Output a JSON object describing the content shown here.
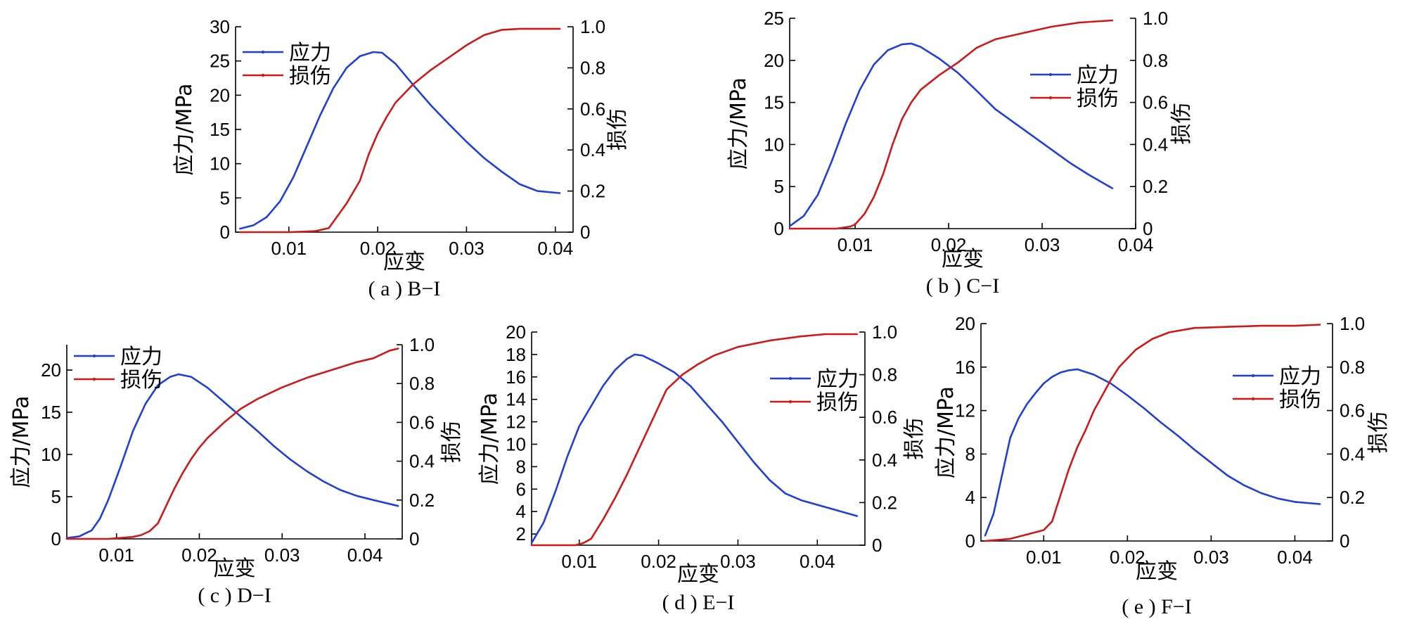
{
  "figure": {
    "stress_color": "#1f3fd8",
    "damage_color": "#d01818"
  },
  "chart_data": [
    {
      "type": "line",
      "caption": "( a ) B−I",
      "xlabel": "应变",
      "ylabel": "应力/MPa",
      "y2label": "损伤",
      "xlim": [
        0.004,
        0.042
      ],
      "ylim": [
        0,
        30
      ],
      "y2lim": [
        0,
        1.0
      ],
      "xticks": [
        0.01,
        0.02,
        0.03,
        0.04
      ],
      "xtick_labels": [
        "0.01",
        "0.02",
        "0.03",
        "0.04"
      ],
      "yticks": [
        0,
        5,
        10,
        15,
        20,
        25,
        30
      ],
      "ytick_labels": [
        "0",
        "5",
        "10",
        "15",
        "20",
        "25",
        "30"
      ],
      "y2ticks": [
        0,
        0.2,
        0.4,
        0.6,
        0.8,
        1.0
      ],
      "y2tick_labels": [
        "0",
        "0.2",
        "0.4",
        "0.6",
        "0.8",
        "1.0"
      ],
      "legend_position": "top-left",
      "series": [
        {
          "name": "应力",
          "axis": "left",
          "color_key": "stress",
          "x": [
            0.0045,
            0.006,
            0.0075,
            0.009,
            0.0105,
            0.012,
            0.0135,
            0.015,
            0.0165,
            0.018,
            0.0195,
            0.0205,
            0.022,
            0.024,
            0.026,
            0.028,
            0.03,
            0.032,
            0.034,
            0.036,
            0.038,
            0.0405
          ],
          "y": [
            0.5,
            1.0,
            2.2,
            4.5,
            8.0,
            12.5,
            17.0,
            21.0,
            24.0,
            25.7,
            26.3,
            26.2,
            24.6,
            21.5,
            18.5,
            15.8,
            13.2,
            10.8,
            8.8,
            7.0,
            6.0,
            5.7
          ]
        },
        {
          "name": "损伤",
          "axis": "right",
          "color_key": "damage",
          "x": [
            0.0045,
            0.01,
            0.013,
            0.0145,
            0.0155,
            0.0165,
            0.018,
            0.019,
            0.02,
            0.021,
            0.022,
            0.024,
            0.026,
            0.028,
            0.03,
            0.032,
            0.034,
            0.036,
            0.038,
            0.0405
          ],
          "y": [
            0,
            0,
            0.005,
            0.02,
            0.08,
            0.14,
            0.25,
            0.38,
            0.48,
            0.56,
            0.63,
            0.72,
            0.79,
            0.85,
            0.91,
            0.96,
            0.985,
            0.99,
            0.99,
            0.99
          ]
        }
      ]
    },
    {
      "type": "line",
      "caption": "( b ) C−I",
      "xlabel": "应变",
      "ylabel": "应力/MPa",
      "y2label": "损伤",
      "xlim": [
        0.003,
        0.04
      ],
      "ylim": [
        0,
        25
      ],
      "y2lim": [
        0,
        1.0
      ],
      "xticks": [
        0.01,
        0.02,
        0.03,
        0.04
      ],
      "xtick_labels": [
        "0.01",
        "0.02",
        "0.03",
        "0.04"
      ],
      "yticks": [
        0,
        5,
        10,
        15,
        20,
        25
      ],
      "ytick_labels": [
        "0",
        "5",
        "10",
        "15",
        "20",
        "25"
      ],
      "y2ticks": [
        0,
        0.2,
        0.4,
        0.6,
        0.8,
        1.0
      ],
      "y2tick_labels": [
        "0",
        "0.2",
        "0.4",
        "0.6",
        "0.8",
        "1.0"
      ],
      "legend_position": "right",
      "series": [
        {
          "name": "应力",
          "axis": "left",
          "color_key": "stress",
          "x": [
            0.003,
            0.0045,
            0.006,
            0.0075,
            0.009,
            0.0105,
            0.012,
            0.0135,
            0.015,
            0.016,
            0.017,
            0.019,
            0.021,
            0.023,
            0.025,
            0.027,
            0.029,
            0.031,
            0.033,
            0.035,
            0.0375
          ],
          "y": [
            0.3,
            1.5,
            4.0,
            8.0,
            12.5,
            16.5,
            19.5,
            21.2,
            21.9,
            22.0,
            21.6,
            20.2,
            18.5,
            16.4,
            14.2,
            12.6,
            11.0,
            9.4,
            7.8,
            6.4,
            4.8
          ]
        },
        {
          "name": "损伤",
          "axis": "right",
          "color_key": "damage",
          "x": [
            0.003,
            0.008,
            0.0095,
            0.01,
            0.011,
            0.012,
            0.013,
            0.014,
            0.015,
            0.016,
            0.017,
            0.019,
            0.021,
            0.023,
            0.025,
            0.028,
            0.031,
            0.034,
            0.0375
          ],
          "y": [
            0,
            0,
            0.01,
            0.02,
            0.07,
            0.15,
            0.26,
            0.4,
            0.52,
            0.6,
            0.66,
            0.73,
            0.79,
            0.86,
            0.9,
            0.93,
            0.96,
            0.98,
            0.99
          ]
        }
      ]
    },
    {
      "type": "line",
      "caption": "( c ) D−I",
      "xlabel": "应变",
      "ylabel": "应力/MPa",
      "y2label": "损伤",
      "xlim": [
        0.004,
        0.0445
      ],
      "ylim": [
        0,
        23
      ],
      "y2lim": [
        0,
        1.0
      ],
      "xticks": [
        0.01,
        0.02,
        0.03,
        0.04
      ],
      "xtick_labels": [
        "0.01",
        "0.02",
        "0.03",
        "0.04"
      ],
      "yticks": [
        0,
        5,
        10,
        15,
        20
      ],
      "ytick_labels": [
        "0",
        "5",
        "10",
        "15",
        "20"
      ],
      "y2ticks": [
        0,
        0.2,
        0.4,
        0.6,
        0.8,
        1.0
      ],
      "y2tick_labels": [
        "0",
        "0.2",
        "0.4",
        "0.6",
        "0.8",
        "1.0"
      ],
      "legend_position": "top-left",
      "series": [
        {
          "name": "应力",
          "axis": "left",
          "color_key": "stress",
          "x": [
            0.004,
            0.0055,
            0.007,
            0.008,
            0.009,
            0.0105,
            0.012,
            0.0135,
            0.015,
            0.0165,
            0.0175,
            0.019,
            0.021,
            0.023,
            0.025,
            0.027,
            0.029,
            0.031,
            0.033,
            0.035,
            0.037,
            0.039,
            0.041,
            0.044
          ],
          "y": [
            0.1,
            0.3,
            1.0,
            2.4,
            4.6,
            8.6,
            12.8,
            16.0,
            18.2,
            19.2,
            19.5,
            19.2,
            17.9,
            16.2,
            14.5,
            12.8,
            11.0,
            9.4,
            8.0,
            6.8,
            5.8,
            5.1,
            4.6,
            3.9
          ]
        },
        {
          "name": "损伤",
          "axis": "right",
          "color_key": "damage",
          "x": [
            0.004,
            0.009,
            0.012,
            0.013,
            0.014,
            0.015,
            0.016,
            0.017,
            0.018,
            0.019,
            0.02,
            0.021,
            0.023,
            0.025,
            0.027,
            0.03,
            0.033,
            0.036,
            0.039,
            0.041,
            0.043,
            0.044
          ],
          "y": [
            0,
            0,
            0.01,
            0.02,
            0.04,
            0.08,
            0.17,
            0.26,
            0.34,
            0.41,
            0.47,
            0.52,
            0.6,
            0.67,
            0.72,
            0.78,
            0.83,
            0.87,
            0.91,
            0.93,
            0.97,
            0.98
          ]
        }
      ]
    },
    {
      "type": "line",
      "caption": "( d ) E−I",
      "xlabel": "应变",
      "ylabel": "应力/MPa",
      "y2label": "损伤",
      "xlim": [
        0.004,
        0.046
      ],
      "ylim": [
        1,
        20
      ],
      "y2lim": [
        0,
        1.0
      ],
      "xticks": [
        0.01,
        0.02,
        0.03,
        0.04
      ],
      "xtick_labels": [
        "0.01",
        "0.02",
        "0.03",
        "0.04"
      ],
      "yticks": [
        2,
        4,
        6,
        8,
        10,
        12,
        14,
        16,
        18,
        20
      ],
      "ytick_labels": [
        "2",
        "4",
        "6",
        "8",
        "10",
        "12",
        "14",
        "16",
        "18",
        "20"
      ],
      "y2ticks": [
        0,
        0.2,
        0.4,
        0.6,
        0.8,
        1.0
      ],
      "y2tick_labels": [
        "0",
        "0.2",
        "0.4",
        "0.6",
        "0.8",
        "1.0"
      ],
      "legend_position": "right",
      "series": [
        {
          "name": "应力",
          "axis": "left",
          "color_key": "stress",
          "x": [
            0.004,
            0.0055,
            0.007,
            0.0085,
            0.01,
            0.0115,
            0.013,
            0.0145,
            0.016,
            0.017,
            0.018,
            0.02,
            0.022,
            0.024,
            0.026,
            0.028,
            0.03,
            0.032,
            0.034,
            0.036,
            0.038,
            0.041,
            0.045
          ],
          "y": [
            1.2,
            3.0,
            5.8,
            8.9,
            11.6,
            13.4,
            15.2,
            16.6,
            17.6,
            18.0,
            17.9,
            17.2,
            16.4,
            15.2,
            13.6,
            12.0,
            10.2,
            8.4,
            6.8,
            5.6,
            5.0,
            4.4,
            3.6
          ]
        },
        {
          "name": "损伤",
          "axis": "right",
          "color_key": "damage",
          "x": [
            0.004,
            0.0095,
            0.0105,
            0.0115,
            0.013,
            0.0145,
            0.016,
            0.0175,
            0.019,
            0.02,
            0.021,
            0.023,
            0.025,
            0.027,
            0.03,
            0.034,
            0.038,
            0.041,
            0.045
          ],
          "y": [
            0,
            0,
            0.01,
            0.03,
            0.12,
            0.22,
            0.33,
            0.45,
            0.57,
            0.65,
            0.73,
            0.8,
            0.85,
            0.89,
            0.93,
            0.96,
            0.98,
            0.99,
            0.99
          ]
        }
      ]
    },
    {
      "type": "line",
      "caption": "( e ) F−I",
      "xlabel": "应变",
      "ylabel": "应力/MPa",
      "y2label": "损伤",
      "xlim": [
        0.0025,
        0.0445
      ],
      "ylim": [
        0,
        20
      ],
      "y2lim": [
        0,
        1.0
      ],
      "xticks": [
        0.01,
        0.02,
        0.03,
        0.04
      ],
      "xtick_labels": [
        "0.01",
        "0.02",
        "0.03",
        "0.04"
      ],
      "yticks": [
        0,
        4,
        8,
        12,
        16,
        20
      ],
      "ytick_labels": [
        "0",
        "4",
        "8",
        "12",
        "16",
        "20"
      ],
      "y2ticks": [
        0,
        0.2,
        0.4,
        0.6,
        0.8,
        1.0
      ],
      "y2tick_labels": [
        "0",
        "0.2",
        "0.4",
        "0.6",
        "0.8",
        "1.0"
      ],
      "legend_position": "right",
      "series": [
        {
          "name": "应力",
          "axis": "left",
          "color_key": "stress",
          "x": [
            0.003,
            0.004,
            0.005,
            0.006,
            0.007,
            0.008,
            0.009,
            0.01,
            0.011,
            0.012,
            0.013,
            0.014,
            0.016,
            0.018,
            0.02,
            0.022,
            0.024,
            0.026,
            0.028,
            0.03,
            0.032,
            0.034,
            0.036,
            0.038,
            0.04,
            0.043
          ],
          "y": [
            0.5,
            2.5,
            6.0,
            9.5,
            11.3,
            12.6,
            13.6,
            14.5,
            15.1,
            15.5,
            15.7,
            15.8,
            15.3,
            14.5,
            13.4,
            12.2,
            10.9,
            9.7,
            8.4,
            7.2,
            6.0,
            5.1,
            4.4,
            3.9,
            3.6,
            3.4
          ]
        },
        {
          "name": "损伤",
          "axis": "right",
          "color_key": "damage",
          "x": [
            0.003,
            0.006,
            0.008,
            0.01,
            0.011,
            0.012,
            0.013,
            0.014,
            0.015,
            0.016,
            0.017,
            0.018,
            0.019,
            0.021,
            0.023,
            0.025,
            0.028,
            0.032,
            0.036,
            0.04,
            0.043
          ],
          "y": [
            0,
            0.01,
            0.03,
            0.05,
            0.09,
            0.21,
            0.33,
            0.43,
            0.51,
            0.6,
            0.67,
            0.74,
            0.8,
            0.88,
            0.93,
            0.96,
            0.98,
            0.985,
            0.99,
            0.99,
            0.995
          ]
        }
      ]
    }
  ]
}
